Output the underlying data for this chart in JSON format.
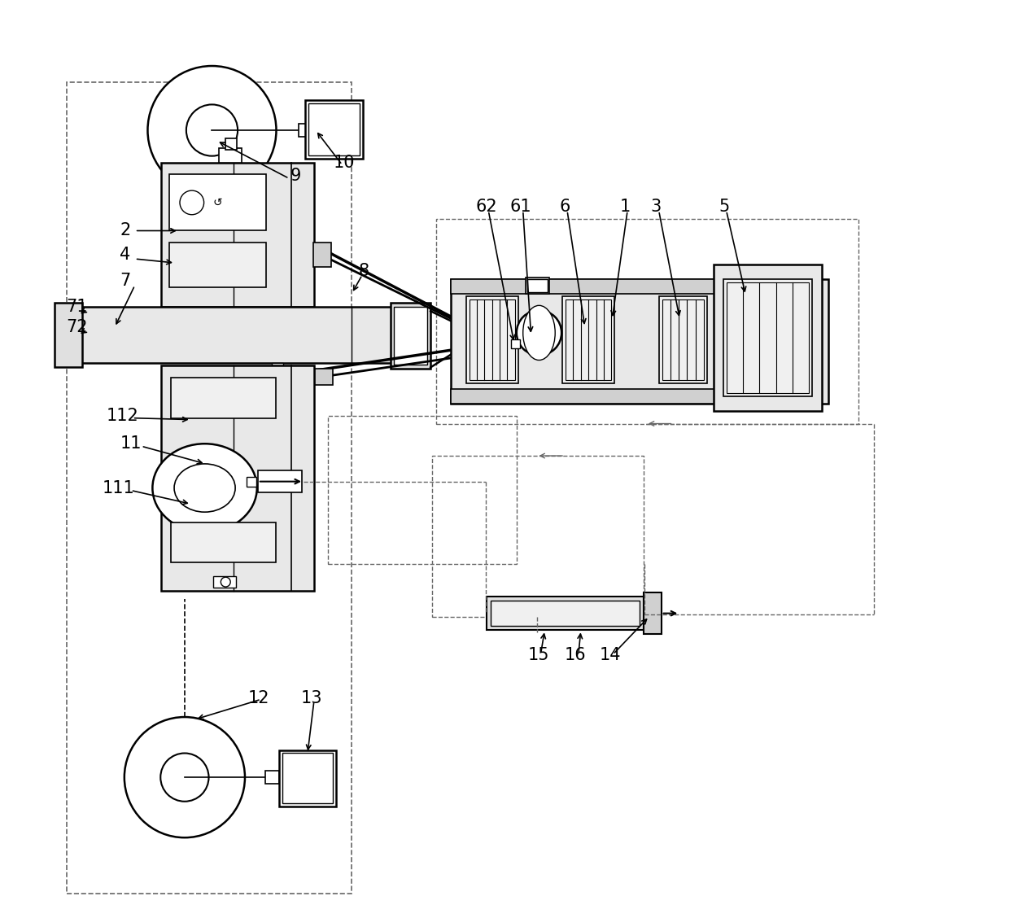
{
  "bg_color": "#ffffff",
  "line_color": "#000000",
  "dashed_color": "#666666",
  "fig_width": 12.4,
  "fig_height": 11.28
}
